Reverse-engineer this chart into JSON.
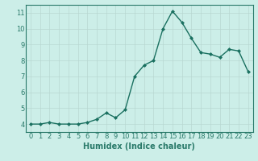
{
  "x": [
    0,
    1,
    2,
    3,
    4,
    5,
    6,
    7,
    8,
    9,
    10,
    11,
    12,
    13,
    14,
    15,
    16,
    17,
    18,
    19,
    20,
    21,
    22,
    23
  ],
  "y": [
    4.0,
    4.0,
    4.1,
    4.0,
    4.0,
    4.0,
    4.1,
    4.3,
    4.7,
    4.4,
    4.9,
    7.0,
    7.7,
    8.0,
    10.0,
    11.1,
    10.4,
    9.4,
    8.5,
    8.4,
    8.2,
    8.7,
    8.6,
    7.3
  ],
  "line_color": "#1a7060",
  "marker": "D",
  "marker_size": 2.0,
  "line_width": 1.0,
  "xlabel": "Humidex (Indice chaleur)",
  "xlabel_fontsize": 7,
  "tick_fontsize": 6,
  "ylim": [
    3.5,
    11.5
  ],
  "xlim": [
    -0.5,
    23.5
  ],
  "yticks": [
    4,
    5,
    6,
    7,
    8,
    9,
    10,
    11
  ],
  "xticks": [
    0,
    1,
    2,
    3,
    4,
    5,
    6,
    7,
    8,
    9,
    10,
    11,
    12,
    13,
    14,
    15,
    16,
    17,
    18,
    19,
    20,
    21,
    22,
    23
  ],
  "bg_color": "#cceee8",
  "grid_color": "#b8d8d2",
  "axes_edge_color": "#2a7a6a",
  "tick_color": "#2a7a6a",
  "label_color": "#2a7a6a"
}
